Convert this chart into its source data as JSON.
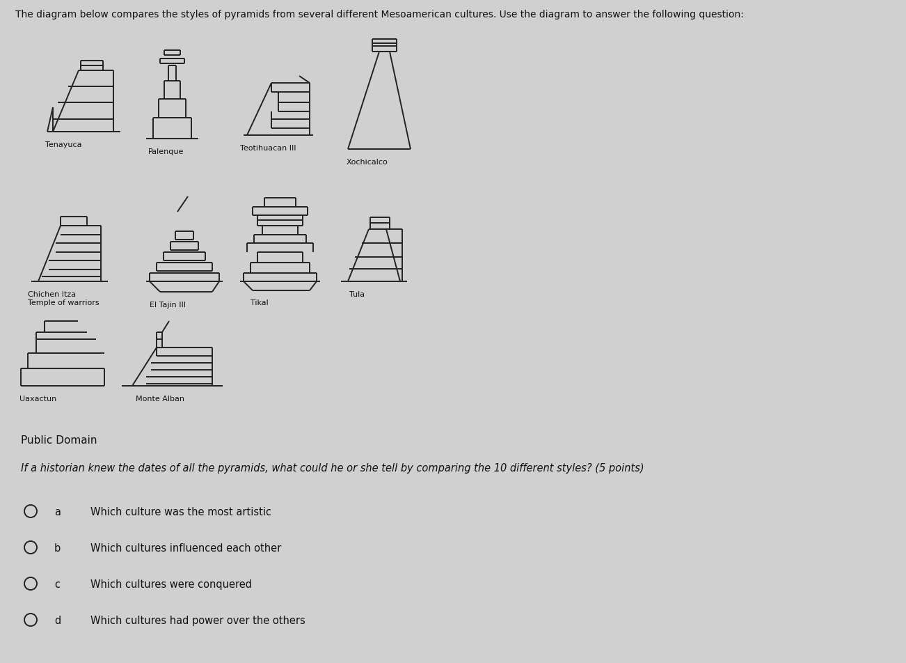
{
  "bg_color": "#d0d0d0",
  "title_text": "The diagram below compares the styles of pyramids from several different Mesoamerican cultures. Use the diagram to answer the following question:",
  "public_domain_text": "Public Domain",
  "question_text": "If a historian knew the dates of all the pyramids, what could he or she tell by comparing the 10 different styles? (5 points)",
  "options": [
    {
      "letter": "a",
      "text": "Which culture was the most artistic"
    },
    {
      "letter": "b",
      "text": "Which cultures influenced each other"
    },
    {
      "letter": "c",
      "text": "Which cultures were conquered"
    },
    {
      "letter": "d",
      "text": "Which cultures had power over the others"
    }
  ],
  "line_color": "#222222",
  "line_width": 1.4,
  "font_color": "#111111"
}
